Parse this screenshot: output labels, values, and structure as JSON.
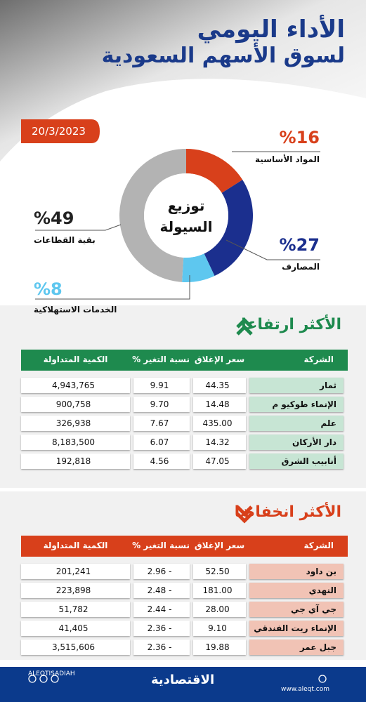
{
  "header": {
    "title_line1": "الأداء اليومي",
    "title_line2": "لسوق الأسهم السعودية",
    "date": "20/3/2023"
  },
  "chart_data": {
    "type": "donut",
    "title": "توزيع السيولة",
    "categories": [
      "المواد الأساسية",
      "المصارف",
      "الخدمات الاستهلاكية",
      "بقية القطاعات"
    ],
    "values": [
      16,
      27,
      8,
      49
    ],
    "value_labels": [
      "%16",
      "%27",
      "%8",
      "%49"
    ],
    "colors": [
      "#d8401b",
      "#1b2f8e",
      "#5ec7ef",
      "#b3b3b3"
    ]
  },
  "gainers": {
    "title": "الأكثر ارتفاعا",
    "columns": [
      "الشركة",
      "سعر الإغلاق",
      "نسبة التغير %",
      "الكمية المتداولة"
    ],
    "rows": [
      [
        "ثمار",
        "44.35",
        "9.91",
        "4,943,765"
      ],
      [
        "الإنماء طوكيو م",
        "14.48",
        "9.70",
        "900,758"
      ],
      [
        "علم",
        "435.00",
        "7.67",
        "326,938"
      ],
      [
        "دار الأركان",
        "14.32",
        "6.07",
        "8,183,500"
      ],
      [
        "أنابيب الشرق",
        "47.05",
        "4.56",
        "192,818"
      ]
    ]
  },
  "losers": {
    "title": "الأكثر انخفاضا",
    "columns": [
      "الشركة",
      "سعر الإغلاق",
      "نسبة التغير %",
      "الكمية المتداولة"
    ],
    "rows": [
      [
        "بن داود",
        "52.50",
        "- 2.96",
        "201,241"
      ],
      [
        "النهدي",
        "181.00",
        "- 2.48",
        "223,898"
      ],
      [
        "جي آي جي",
        "28.00",
        "- 2.44",
        "51,782"
      ],
      [
        "الإنماء ريت الفندقي",
        "9.10",
        "- 2.36",
        "41,405"
      ],
      [
        "جبل عمر",
        "19.88",
        "- 2.36",
        "3,515,606"
      ]
    ]
  },
  "footer": {
    "handle": "ALEQTISADIAH",
    "logo": "الاقتصادية",
    "website": "www.aleqt.com"
  }
}
